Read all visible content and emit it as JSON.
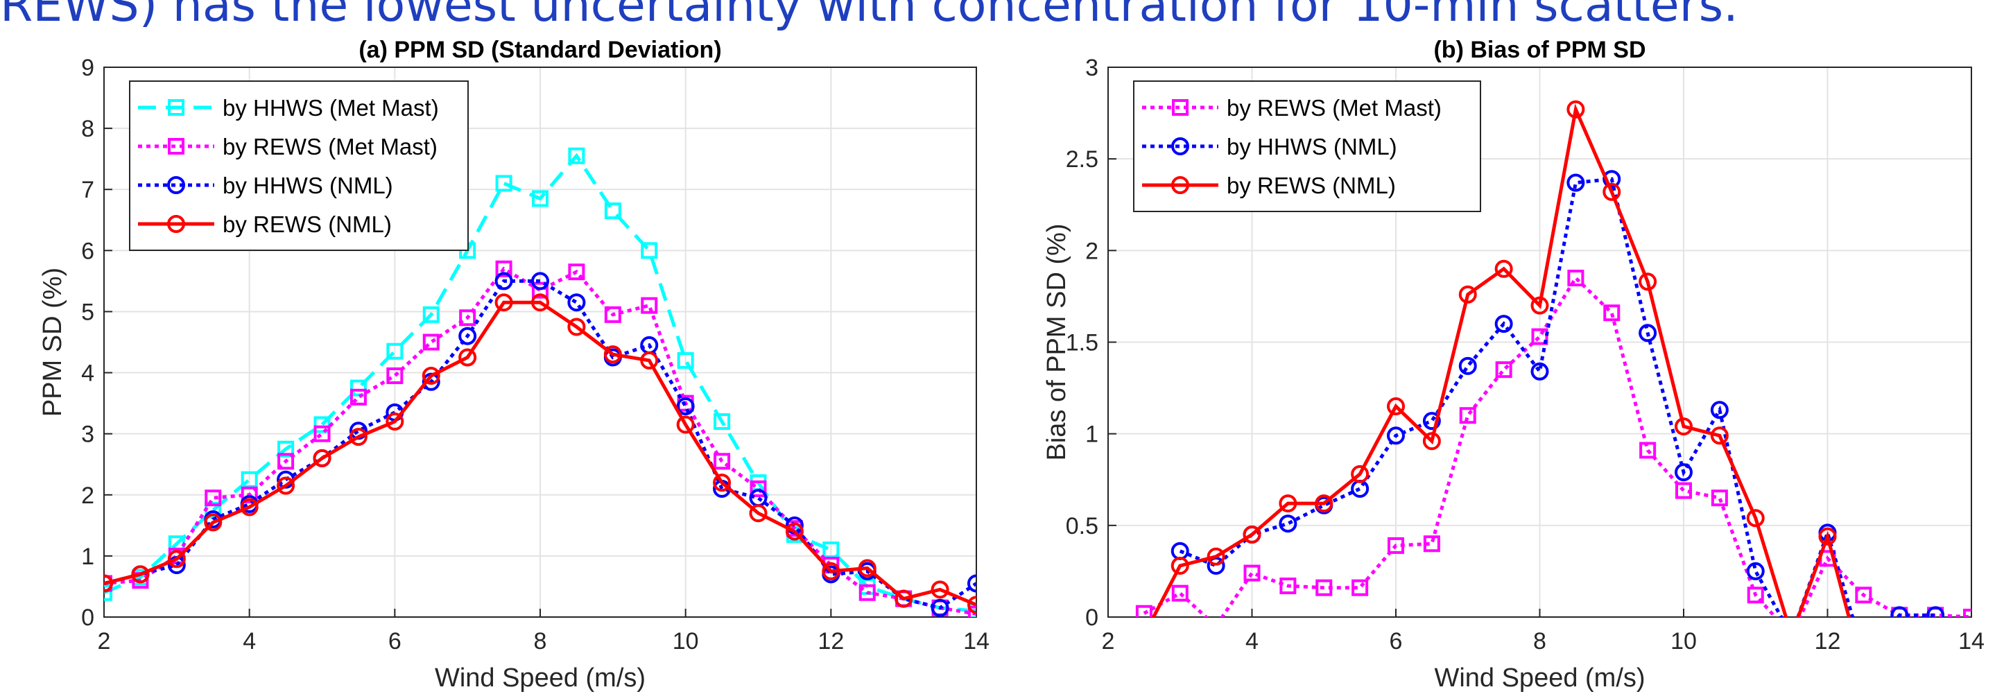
{
  "heading": "REWS) has the lowest uncertainty with concentration for 10-min scatters.",
  "chart_data": [
    {
      "type": "line",
      "title": "(a) PPM SD (Standard Deviation)",
      "xlabel": "Wind Speed (m/s)",
      "ylabel": "PPM SD (%)",
      "x": [
        2,
        2.5,
        3,
        3.5,
        4,
        4.5,
        5,
        5.5,
        6,
        6.5,
        7,
        7.5,
        8,
        8.5,
        9,
        9.5,
        10,
        10.5,
        11,
        11.5,
        12,
        12.5,
        13,
        13.5,
        14
      ],
      "xlim": [
        2,
        14
      ],
      "xticks": [
        2,
        4,
        6,
        8,
        10,
        12,
        14
      ],
      "ylim": [
        0,
        9
      ],
      "yticks": [
        0,
        1,
        2,
        3,
        4,
        5,
        6,
        7,
        8,
        9
      ],
      "grid": true,
      "legend": "upper left",
      "series": [
        {
          "name": "by HHWS (Met Mast)",
          "color": "#00ffff",
          "dash": "dashed",
          "marker": "square",
          "values": [
            0.4,
            0.65,
            1.2,
            1.75,
            2.25,
            2.75,
            3.15,
            3.75,
            4.35,
            4.95,
            6.0,
            7.1,
            6.85,
            7.55,
            6.65,
            6.0,
            4.2,
            3.2,
            2.2,
            1.35,
            1.1,
            0.5,
            0.3,
            0.15,
            0.1
          ]
        },
        {
          "name": "by REWS (Met Mast)",
          "color": "#ff00ff",
          "dash": "dotted",
          "marker": "square",
          "values": [
            0.55,
            0.6,
            1.0,
            1.95,
            2.0,
            2.55,
            3.0,
            3.6,
            3.95,
            4.5,
            4.9,
            5.7,
            5.35,
            5.65,
            4.95,
            5.1,
            3.5,
            2.55,
            2.1,
            1.45,
            0.85,
            0.4,
            0.3,
            0.15,
            0.05
          ]
        },
        {
          "name": "by HHWS (NML)",
          "color": "#0000ff",
          "dash": "dotted",
          "marker": "circle",
          "values": [
            0.55,
            0.7,
            0.85,
            1.6,
            1.85,
            2.25,
            2.6,
            3.05,
            3.35,
            3.85,
            4.6,
            5.5,
            5.5,
            5.15,
            4.25,
            4.45,
            3.45,
            2.1,
            1.95,
            1.5,
            0.7,
            0.75,
            0.3,
            0.15,
            0.55
          ]
        },
        {
          "name": "by REWS (NML)",
          "color": "#ff0000",
          "dash": "solid",
          "marker": "circle",
          "values": [
            0.55,
            0.7,
            0.95,
            1.55,
            1.8,
            2.15,
            2.6,
            2.95,
            3.2,
            3.95,
            4.25,
            5.15,
            5.15,
            4.75,
            4.3,
            4.2,
            3.15,
            2.2,
            1.7,
            1.4,
            0.75,
            0.8,
            0.3,
            0.45,
            0.2
          ]
        }
      ]
    },
    {
      "type": "line",
      "title": "(b) Bias of PPM SD",
      "xlabel": "Wind Speed (m/s)",
      "ylabel": "Bias of PPM SD (%)",
      "x": [
        2,
        2.5,
        3,
        3.5,
        4,
        4.5,
        5,
        5.5,
        6,
        6.5,
        7,
        7.5,
        8,
        8.5,
        9,
        9.5,
        10,
        10.5,
        11,
        11.5,
        12,
        12.5,
        13,
        13.5,
        14
      ],
      "xlim": [
        2,
        14
      ],
      "xticks": [
        2,
        4,
        6,
        8,
        10,
        12,
        14
      ],
      "ylim": [
        0,
        3
      ],
      "yticks": [
        0,
        0.5,
        1,
        1.5,
        2,
        2.5,
        3
      ],
      "grid": true,
      "legend": "upper left",
      "series": [
        {
          "name": "by REWS (Met Mast)",
          "color": "#ff00ff",
          "dash": "dotted",
          "marker": "square",
          "values": [
            null,
            0.02,
            0.13,
            -0.05,
            0.24,
            0.17,
            0.16,
            0.16,
            0.39,
            0.4,
            1.1,
            1.35,
            1.53,
            1.85,
            1.66,
            0.91,
            0.69,
            0.65,
            0.12,
            -0.1,
            0.32,
            0.12,
            0.01,
            0.01,
            0
          ]
        },
        {
          "name": "by HHWS (NML)",
          "color": "#0000ff",
          "dash": "dotted",
          "marker": "circle",
          "values": [
            null,
            null,
            0.36,
            0.28,
            0.45,
            0.51,
            0.61,
            0.7,
            0.99,
            1.07,
            1.37,
            1.6,
            1.34,
            2.37,
            2.39,
            1.55,
            0.79,
            1.13,
            0.25,
            -0.1,
            0.46,
            -0.2,
            0.01,
            0.01,
            null
          ]
        },
        {
          "name": "by REWS (NML)",
          "color": "#ff0000",
          "dash": "solid",
          "marker": "circle",
          "values": [
            null,
            -0.1,
            0.28,
            0.33,
            0.45,
            0.62,
            0.62,
            0.78,
            1.15,
            0.96,
            1.76,
            1.9,
            1.7,
            2.77,
            2.32,
            1.83,
            1.04,
            0.99,
            0.54,
            -0.1,
            0.44,
            -0.3,
            null,
            null,
            null
          ]
        }
      ]
    }
  ]
}
